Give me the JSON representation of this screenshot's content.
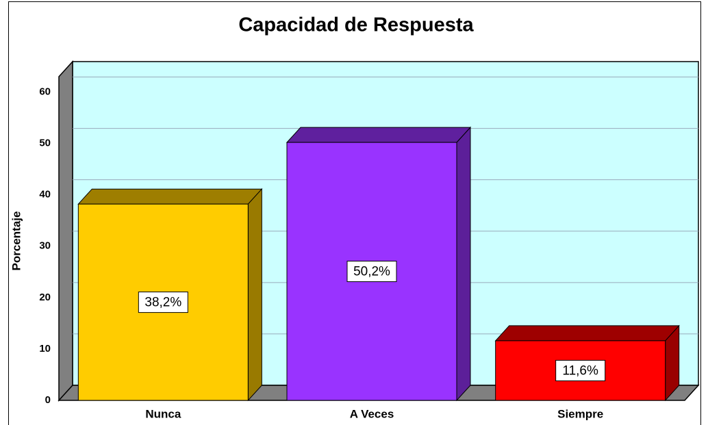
{
  "chart_data": {
    "type": "bar",
    "title": "Capacidad de Respuesta",
    "y_label": "Porcentaje",
    "categories": [
      "Nunca",
      "A Veces",
      "Siempre"
    ],
    "values": [
      38.2,
      50.2,
      11.6
    ],
    "value_labels": [
      "38,2%",
      "50,2%",
      "11,6%"
    ],
    "colors": [
      "#ffcc00",
      "#9933ff",
      "#ff0000"
    ],
    "ylim": [
      0,
      63
    ],
    "yticks": [
      0,
      10,
      20,
      30,
      40,
      50,
      60
    ],
    "grid": true
  }
}
